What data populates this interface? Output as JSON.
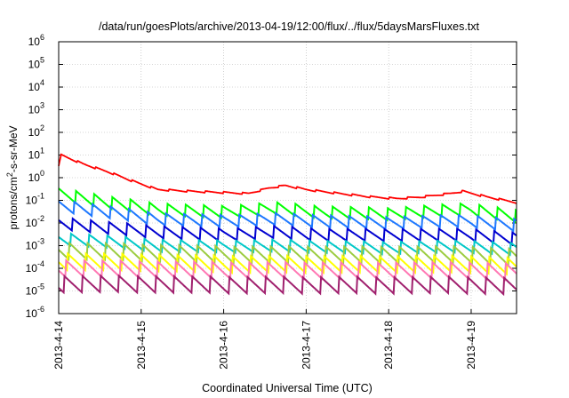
{
  "chart_data": {
    "type": "line",
    "title": "/data/run/goesPlots/archive/2013-04-19/12:00/flux/../flux/5daysMarsFluxes.txt",
    "xlabel": "Coordinated Universal Time (UTC)",
    "ylabel": "protons/cm²-s-sr-MeV",
    "ylabel_parts": [
      "protons/cm",
      "2",
      "-s-sr-MeV"
    ],
    "yscale": "log",
    "ylim_exponents": [
      -6,
      6
    ],
    "yticks": [
      {
        "base": "10",
        "exp": "6"
      },
      {
        "base": "10",
        "exp": "5"
      },
      {
        "base": "10",
        "exp": "4"
      },
      {
        "base": "10",
        "exp": "3"
      },
      {
        "base": "10",
        "exp": "2"
      },
      {
        "base": "10",
        "exp": "1"
      },
      {
        "base": "10",
        "exp": "0"
      },
      {
        "base": "10",
        "exp": "-1"
      },
      {
        "base": "10",
        "exp": "-2"
      },
      {
        "base": "10",
        "exp": "-3"
      },
      {
        "base": "10",
        "exp": "-4"
      },
      {
        "base": "10",
        "exp": "-5"
      },
      {
        "base": "10",
        "exp": "-6"
      }
    ],
    "xlim_days": [
      0,
      5.55
    ],
    "xticks": [
      "2013-4-14",
      "2013-4-15",
      "2013-4-16",
      "2013-4-17",
      "2013-4-18",
      "2013-4-19"
    ],
    "grid": true,
    "series": [
      {
        "color": "#ff0000",
        "points": [
          [
            0,
            3
          ],
          [
            0.03,
            10
          ],
          [
            0.3,
            4
          ],
          [
            0.6,
            1.8
          ],
          [
            0.9,
            0.7
          ],
          [
            1.2,
            0.3
          ],
          [
            1.6,
            0.25
          ],
          [
            2.0,
            0.22
          ],
          [
            2.3,
            0.2
          ],
          [
            2.55,
            0.35
          ],
          [
            2.75,
            0.45
          ],
          [
            3.0,
            0.3
          ],
          [
            3.4,
            0.2
          ],
          [
            3.8,
            0.14
          ],
          [
            4.1,
            0.12
          ],
          [
            4.4,
            0.14
          ],
          [
            4.75,
            0.2
          ],
          [
            4.9,
            0.25
          ],
          [
            5.2,
            0.14
          ],
          [
            5.55,
            0.08
          ]
        ]
      },
      {
        "color": "#00ff00",
        "points": [
          [
            0,
            0.2
          ],
          [
            0.6,
            0.08
          ],
          [
            1.2,
            0.04
          ],
          [
            2.0,
            0.03
          ],
          [
            2.6,
            0.045
          ],
          [
            3.2,
            0.03
          ],
          [
            4.0,
            0.025
          ],
          [
            4.6,
            0.035
          ],
          [
            5.0,
            0.04
          ],
          [
            5.55,
            0.02
          ]
        ]
      },
      {
        "color": "#1e78ff",
        "points": [
          [
            0,
            0.06
          ],
          [
            0.6,
            0.03
          ],
          [
            1.2,
            0.015
          ],
          [
            2.0,
            0.012
          ],
          [
            2.6,
            0.015
          ],
          [
            3.2,
            0.012
          ],
          [
            4.0,
            0.01
          ],
          [
            4.6,
            0.012
          ],
          [
            5.0,
            0.012
          ],
          [
            5.55,
            0.008
          ]
        ]
      },
      {
        "color": "#0000d0",
        "points": [
          [
            0,
            0.01
          ],
          [
            0.6,
            0.006
          ],
          [
            1.2,
            0.004
          ],
          [
            2.0,
            0.003
          ],
          [
            2.6,
            0.004
          ],
          [
            3.2,
            0.003
          ],
          [
            4.0,
            0.003
          ],
          [
            4.6,
            0.003
          ],
          [
            5.0,
            0.003
          ],
          [
            5.55,
            0.002
          ]
        ]
      },
      {
        "color": "#00c8c8",
        "points": [
          [
            0,
            0.002
          ],
          [
            0.6,
            0.0015
          ],
          [
            1.2,
            0.001
          ],
          [
            2.0,
            0.0009
          ],
          [
            2.6,
            0.001
          ],
          [
            3.2,
            0.0009
          ],
          [
            4.0,
            0.0008
          ],
          [
            4.6,
            0.0009
          ],
          [
            5.0,
            0.0009
          ],
          [
            5.55,
            0.0007
          ]
        ]
      },
      {
        "color": "#9ccc40",
        "points": [
          [
            0,
            0.0006
          ],
          [
            1.0,
            0.0005
          ],
          [
            2.0,
            0.0004
          ],
          [
            3.0,
            0.0004
          ],
          [
            4.0,
            0.0004
          ],
          [
            5.0,
            0.0004
          ],
          [
            5.55,
            0.0003
          ]
        ]
      },
      {
        "color": "#ffff00",
        "points": [
          [
            0,
            0.0002
          ],
          [
            1.0,
            0.00018
          ],
          [
            2.0,
            0.00015
          ],
          [
            3.0,
            0.00015
          ],
          [
            4.0,
            0.00015
          ],
          [
            5.0,
            0.00015
          ],
          [
            5.55,
            0.00012
          ]
        ]
      },
      {
        "color": "#ff78b4",
        "points": [
          [
            0,
            0.0001
          ],
          [
            1.0,
            9e-05
          ],
          [
            2.0,
            8e-05
          ],
          [
            3.0,
            8e-05
          ],
          [
            4.0,
            8e-05
          ],
          [
            5.0,
            8e-05
          ],
          [
            5.55,
            7e-05
          ]
        ]
      },
      {
        "color": "#a0206e",
        "points": [
          [
            0,
            2e-05
          ],
          [
            1.0,
            2e-05
          ],
          [
            2.0,
            1.8e-05
          ],
          [
            3.0,
            1.8e-05
          ],
          [
            4.0,
            1.8e-05
          ],
          [
            5.0,
            1.8e-05
          ],
          [
            5.55,
            1.6e-05
          ]
        ]
      }
    ]
  }
}
